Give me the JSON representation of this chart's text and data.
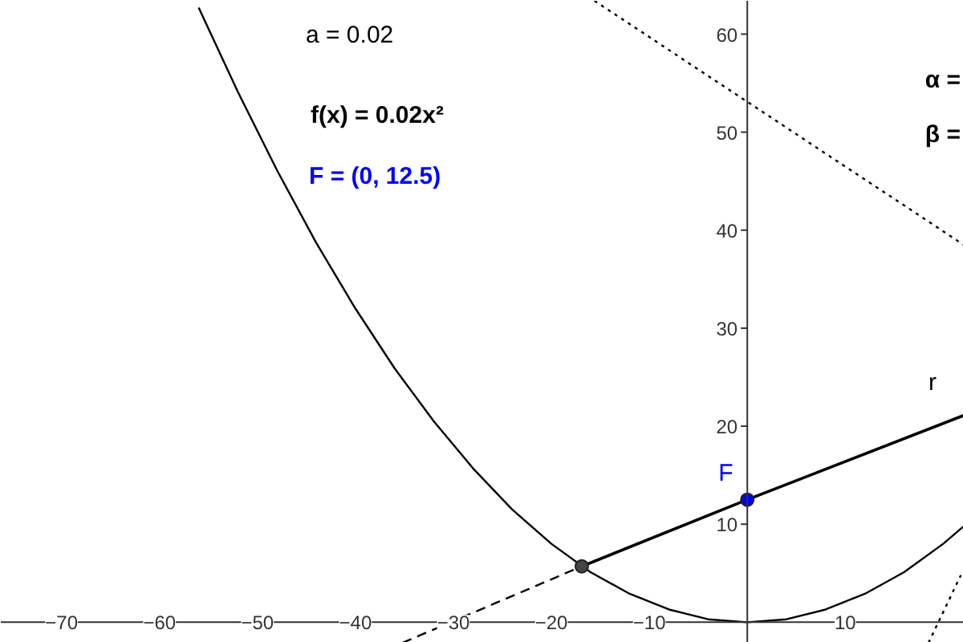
{
  "chart_data": {
    "type": "line",
    "xlim": [
      -76.2,
      22.1
    ],
    "ylim": [
      -2.1,
      63.4
    ],
    "xticks": [
      {
        "value": -70,
        "label": "−70"
      },
      {
        "value": -60,
        "label": "−60"
      },
      {
        "value": -50,
        "label": "−50"
      },
      {
        "value": -40,
        "label": "−40"
      },
      {
        "value": -30,
        "label": "−30"
      },
      {
        "value": -20,
        "label": "−20"
      },
      {
        "value": -10,
        "label": "−10"
      },
      10
    ],
    "yticks": [
      10,
      20,
      30,
      40,
      50,
      60
    ],
    "grid": false,
    "legend": false,
    "series": [
      {
        "type": "line",
        "color": "#000000",
        "line_style": "solid",
        "x": [
          -56,
          -52,
          -48,
          -44,
          -40,
          -36,
          -32,
          -28,
          -24,
          -20,
          -16,
          -12,
          -8,
          -4,
          0,
          4,
          8,
          12,
          16,
          20,
          22.1
        ],
        "values": [
          62.7,
          54.1,
          46.1,
          38.7,
          32,
          25.9,
          20.5,
          15.7,
          11.5,
          8,
          5.1,
          2.9,
          1.3,
          0.3,
          0,
          0.3,
          1.3,
          2.9,
          5.1,
          8,
          9.8
        ]
      },
      {
        "type": "line",
        "name": "r",
        "color": "#000000",
        "line_style": "solid",
        "x": [
          -16.9,
          0,
          22.1
        ],
        "values": [
          5.7,
          12.5,
          21.1
        ]
      },
      {
        "type": "line",
        "color": "#000000",
        "line_style": "dashed",
        "x": [
          -35.2,
          -16.9
        ],
        "values": [
          -2.1,
          5.7
        ]
      },
      {
        "type": "line",
        "color": "#000000",
        "line_style": "dotted",
        "x": [
          -15.6,
          22.1
        ],
        "values": [
          63.4,
          38.5
        ]
      },
      {
        "type": "line",
        "color": "#000000",
        "line_style": "dotted",
        "x": [
          18.5,
          21.8
        ],
        "values": [
          -2.1,
          4.8
        ]
      },
      {
        "type": "scatter",
        "color": "#444444",
        "marker": "circle",
        "x": [
          -16.9
        ],
        "values": [
          5.7
        ]
      },
      {
        "type": "scatter",
        "name": "F",
        "color": "#0000ff",
        "marker": "circle",
        "x": [
          0
        ],
        "values": [
          12.5
        ]
      }
    ],
    "annotations": [
      "a = 0.02",
      "f(x) = 0.02x²",
      "F = (0, 12.5)",
      "α =",
      "β ="
    ]
  }
}
